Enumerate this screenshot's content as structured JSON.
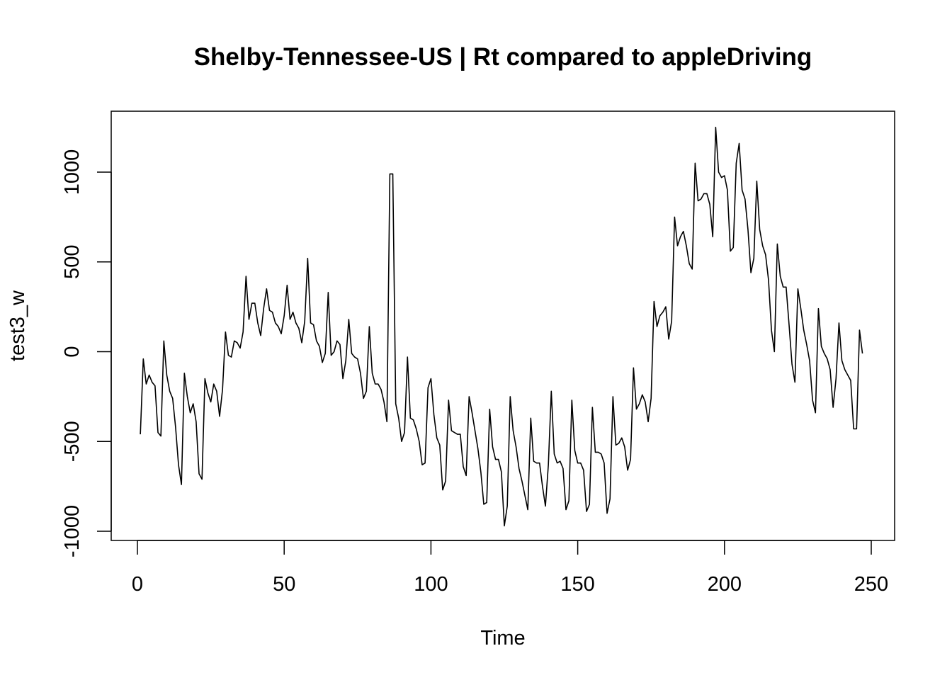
{
  "chart_data": {
    "type": "line",
    "title": "Shelby-Tennessee-US | Rt compared to appleDriving",
    "xlabel": "Time",
    "ylabel": "test3_w",
    "xlim": [
      1,
      248
    ],
    "ylim": [
      -1000,
      1250
    ],
    "x_ticks": [
      0,
      50,
      100,
      150,
      200,
      250
    ],
    "y_ticks": [
      -1000,
      -500,
      0,
      500,
      1000
    ],
    "x_tick_labels": [
      "0",
      "50",
      "100",
      "150",
      "200",
      "250"
    ],
    "y_tick_labels": [
      "-1000",
      "-500",
      "0",
      "500",
      "1000"
    ],
    "grid": false,
    "series": [
      {
        "values": [
          -460,
          -40,
          -180,
          -130,
          -170,
          -190,
          -450,
          -470,
          60,
          -130,
          -220,
          -260,
          -420,
          -630,
          -740,
          -120,
          -250,
          -340,
          -290,
          -390,
          -680,
          -710,
          -150,
          -230,
          -280,
          -180,
          -220,
          -360,
          -210,
          110,
          -20,
          -30,
          60,
          50,
          20,
          110,
          420,
          180,
          270,
          270,
          160,
          90,
          240,
          350,
          230,
          220,
          160,
          140,
          100,
          200,
          370,
          180,
          220,
          160,
          130,
          50,
          170,
          520,
          160,
          150,
          60,
          30,
          -60,
          -10,
          330,
          -20,
          0,
          60,
          40,
          -150,
          -50,
          180,
          -10,
          -30,
          -40,
          -120,
          -260,
          -220,
          140,
          -120,
          -180,
          -180,
          -210,
          -280,
          -390,
          990,
          990,
          -290,
          -370,
          -500,
          -450,
          -30,
          -370,
          -380,
          -430,
          -500,
          -630,
          -620,
          -200,
          -150,
          -350,
          -480,
          -520,
          -770,
          -720,
          -270,
          -440,
          -450,
          -460,
          -460,
          -640,
          -690,
          -250,
          -340,
          -440,
          -540,
          -670,
          -850,
          -840,
          -320,
          -530,
          -600,
          -600,
          -670,
          -970,
          -860,
          -250,
          -440,
          -530,
          -650,
          -720,
          -800,
          -880,
          -370,
          -610,
          -620,
          -620,
          -750,
          -860,
          -630,
          -220,
          -570,
          -620,
          -610,
          -650,
          -880,
          -830,
          -270,
          -550,
          -620,
          -620,
          -660,
          -890,
          -850,
          -310,
          -560,
          -560,
          -570,
          -620,
          -900,
          -820,
          -250,
          -520,
          -510,
          -480,
          -530,
          -660,
          -600,
          -90,
          -320,
          -290,
          -240,
          -280,
          -390,
          -260,
          280,
          140,
          200,
          220,
          250,
          70,
          170,
          750,
          590,
          640,
          670,
          590,
          490,
          460,
          1050,
          840,
          850,
          880,
          880,
          820,
          640,
          1250,
          1000,
          970,
          980,
          900,
          560,
          580,
          1050,
          1160,
          900,
          850,
          680,
          440,
          520,
          950,
          680,
          590,
          540,
          400,
          120,
          0,
          600,
          420,
          360,
          360,
          150,
          -70,
          -170,
          350,
          240,
          120,
          40,
          -50,
          -270,
          -340,
          240,
          30,
          -10,
          -40,
          -100,
          -310,
          -150,
          160,
          -50,
          -100,
          -130,
          -160,
          -430,
          -430,
          120,
          -10
        ]
      }
    ]
  }
}
